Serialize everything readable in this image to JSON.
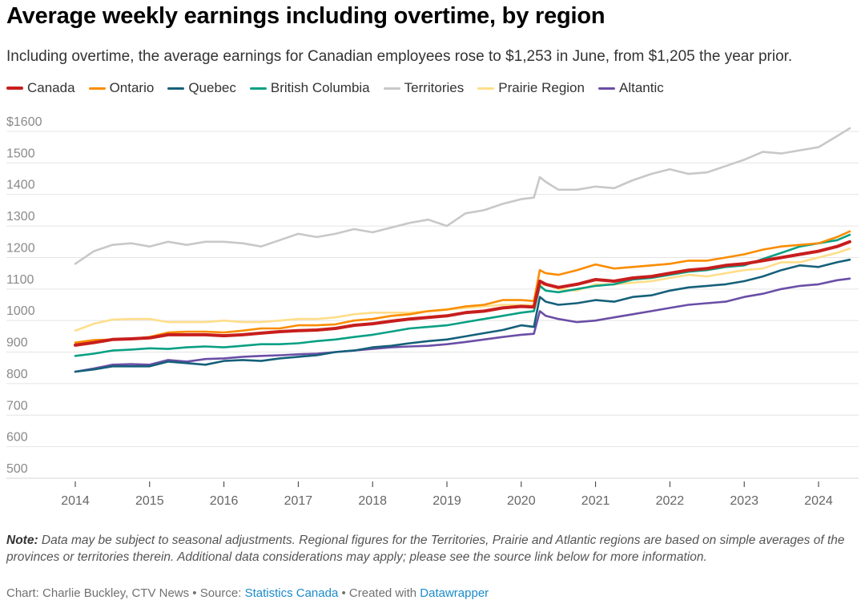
{
  "header": {
    "title": "Average weekly earnings including overtime, by region",
    "subtitle": "Including overtime, the average earnings for Canadian employees rose to $1,253 in June, from $1,205 the year prior."
  },
  "legend": [
    {
      "name": "Canada",
      "color": "#c71e1d"
    },
    {
      "name": "Ontario",
      "color": "#fa8c00"
    },
    {
      "name": "Quebec",
      "color": "#15607a"
    },
    {
      "name": "British Columbia",
      "color": "#09a084"
    },
    {
      "name": "Territories",
      "color": "#c8c8c8"
    },
    {
      "name": "Prairie Region",
      "color": "#ffde8a"
    },
    {
      "name": "Altantic",
      "color": "#6a4ea6"
    }
  ],
  "chart_data": {
    "type": "line",
    "title": "Average weekly earnings including overtime, by region",
    "xlabel": "",
    "ylabel": "",
    "ylim": [
      500,
      1600
    ],
    "xlim": [
      2014.0,
      2024.42
    ],
    "y_ticks": [
      1600,
      1500,
      1400,
      1300,
      1200,
      1100,
      1000,
      900,
      800,
      700,
      600,
      500
    ],
    "y_tick_labels": [
      "$1600",
      "1500",
      "1400",
      "1300",
      "1200",
      "1100",
      "1000",
      "900",
      "800",
      "700",
      "600",
      "500"
    ],
    "x_ticks": [
      2014,
      2015,
      2016,
      2017,
      2018,
      2019,
      2020,
      2021,
      2022,
      2023,
      2024
    ],
    "x_tick_labels": [
      "2014",
      "2015",
      "2016",
      "2017",
      "2018",
      "2019",
      "2020",
      "2021",
      "2022",
      "2023",
      "2024"
    ],
    "grid": true,
    "legend_position": "top-left",
    "x": [
      2014.0,
      2014.25,
      2014.5,
      2014.75,
      2015.0,
      2015.25,
      2015.5,
      2015.75,
      2016.0,
      2016.25,
      2016.5,
      2016.75,
      2017.0,
      2017.25,
      2017.5,
      2017.75,
      2018.0,
      2018.25,
      2018.5,
      2018.75,
      2019.0,
      2019.25,
      2019.5,
      2019.75,
      2020.0,
      2020.17,
      2020.25,
      2020.33,
      2020.5,
      2020.75,
      2021.0,
      2021.25,
      2021.5,
      2021.75,
      2022.0,
      2022.25,
      2022.5,
      2022.75,
      2023.0,
      2023.25,
      2023.5,
      2023.75,
      2024.0,
      2024.25,
      2024.42
    ],
    "series": [
      {
        "name": "Territories",
        "values": [
          1180,
          1220,
          1240,
          1245,
          1235,
          1250,
          1240,
          1250,
          1250,
          1245,
          1235,
          1255,
          1275,
          1265,
          1275,
          1290,
          1280,
          1295,
          1310,
          1320,
          1300,
          1340,
          1350,
          1370,
          1385,
          1390,
          1455,
          1440,
          1415,
          1415,
          1425,
          1420,
          1445,
          1465,
          1480,
          1465,
          1470,
          1490,
          1510,
          1535,
          1530,
          1540,
          1550,
          1585,
          1610
        ]
      },
      {
        "name": "Prairie Region",
        "values": [
          968,
          990,
          1003,
          1005,
          1005,
          995,
          995,
          995,
          1000,
          995,
          995,
          1000,
          1005,
          1005,
          1010,
          1020,
          1025,
          1025,
          1025,
          1030,
          1035,
          1040,
          1045,
          1050,
          1050,
          1050,
          1110,
          1115,
          1100,
          1095,
          1115,
          1115,
          1120,
          1125,
          1135,
          1145,
          1140,
          1150,
          1160,
          1165,
          1185,
          1185,
          1200,
          1215,
          1228
        ]
      },
      {
        "name": "Ontario",
        "values": [
          930,
          938,
          940,
          942,
          948,
          962,
          965,
          965,
          962,
          968,
          975,
          975,
          985,
          985,
          988,
          1000,
          1005,
          1015,
          1020,
          1030,
          1035,
          1045,
          1050,
          1065,
          1065,
          1062,
          1160,
          1150,
          1145,
          1160,
          1178,
          1165,
          1170,
          1175,
          1180,
          1190,
          1190,
          1200,
          1210,
          1225,
          1235,
          1240,
          1245,
          1265,
          1283
        ]
      },
      {
        "name": "Canada",
        "values": [
          922,
          930,
          940,
          942,
          945,
          955,
          955,
          955,
          952,
          955,
          960,
          965,
          968,
          970,
          975,
          985,
          990,
          998,
          1005,
          1010,
          1015,
          1025,
          1030,
          1040,
          1045,
          1043,
          1125,
          1115,
          1105,
          1115,
          1130,
          1125,
          1135,
          1140,
          1150,
          1160,
          1165,
          1175,
          1180,
          1190,
          1200,
          1210,
          1220,
          1235,
          1250
        ]
      },
      {
        "name": "British Columbia",
        "values": [
          888,
          895,
          905,
          908,
          912,
          910,
          915,
          918,
          915,
          920,
          925,
          925,
          928,
          935,
          940,
          948,
          955,
          965,
          975,
          980,
          985,
          995,
          1005,
          1015,
          1025,
          1030,
          1110,
          1095,
          1090,
          1100,
          1110,
          1115,
          1130,
          1135,
          1145,
          1155,
          1160,
          1170,
          1175,
          1195,
          1215,
          1235,
          1245,
          1255,
          1272
        ]
      },
      {
        "name": "Quebec",
        "values": [
          838,
          845,
          855,
          855,
          855,
          870,
          865,
          860,
          872,
          875,
          872,
          880,
          885,
          890,
          900,
          905,
          915,
          920,
          928,
          935,
          940,
          950,
          960,
          970,
          985,
          980,
          1075,
          1060,
          1050,
          1055,
          1065,
          1060,
          1075,
          1080,
          1095,
          1105,
          1110,
          1115,
          1125,
          1140,
          1160,
          1175,
          1170,
          1185,
          1193
        ]
      },
      {
        "name": "Altantic",
        "values": [
          838,
          848,
          860,
          862,
          860,
          875,
          870,
          878,
          880,
          885,
          888,
          890,
          893,
          895,
          900,
          905,
          910,
          915,
          918,
          920,
          925,
          932,
          940,
          948,
          955,
          958,
          1030,
          1015,
          1005,
          995,
          1000,
          1010,
          1020,
          1030,
          1040,
          1050,
          1055,
          1060,
          1075,
          1085,
          1100,
          1110,
          1115,
          1128,
          1133
        ]
      }
    ]
  },
  "footer": {
    "note_label": "Note:",
    "note_text": " Data may be subject to seasonal adjustments. Regional figures for the Territories, Prairie and Atlantic regions are based on simple averages of the provinces or territories therein. Additional data considerations may apply; please see the source link below for more information.",
    "credit_prefix": "Chart: Charlie Buckley, CTV News • Source: ",
    "source_link": "Statistics Canada",
    "credit_middle": " • Created with ",
    "tool_link": "Datawrapper"
  }
}
